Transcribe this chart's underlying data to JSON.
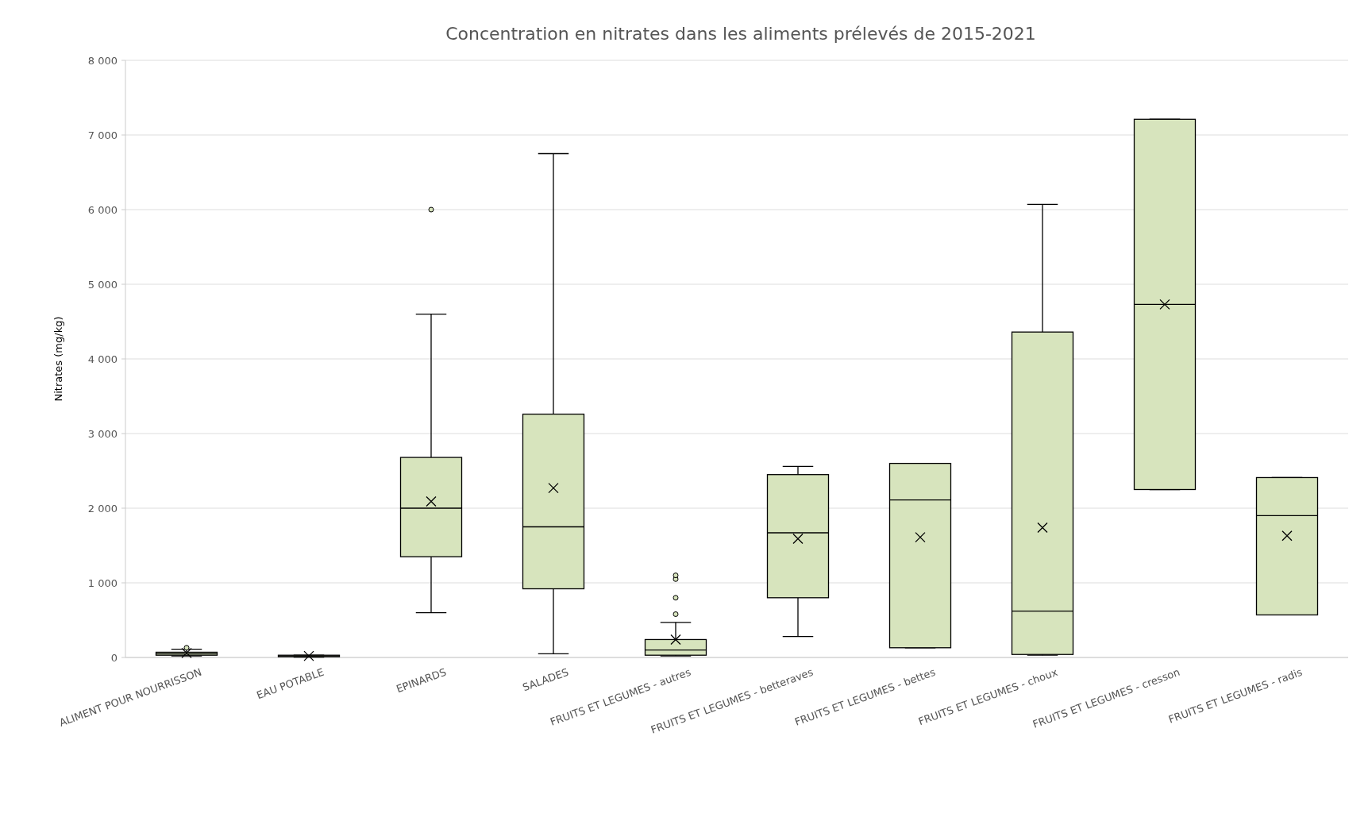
{
  "chart_data": {
    "type": "box",
    "title": "Concentration en nitrates dans les aliments prélevés de 2015-2021",
    "ylabel": "Nitrates (mg/kg)",
    "categories": [
      "ALIMENT POUR NOURRISSON",
      "EAU POTABLE",
      "EPINARDS",
      "SALADES",
      "FRUITS ET LEGUMES - autres",
      "FRUITS ET LEGUMES - betteraves",
      "FRUITS ET LEGUMES - bettes",
      "FRUITS ET LEGUMES - choux",
      "FRUITS ET LEGUMES - cresson",
      "FRUITS ET LEGUMES - radis"
    ],
    "color": "#d7e4bd",
    "boxes": [
      {
        "low": 20,
        "q1": 30,
        "median": 50,
        "q3": 70,
        "high": 110,
        "mean": 60,
        "outliers": [
          130
        ]
      },
      {
        "low": 5,
        "q1": 10,
        "median": 20,
        "q3": 30,
        "high": 30,
        "mean": 20
      },
      {
        "low": 600,
        "q1": 1350,
        "median": 2000,
        "q3": 2680,
        "high": 4600,
        "mean": 2090,
        "outliers": [
          6000
        ]
      },
      {
        "low": 50,
        "q1": 920,
        "median": 1750,
        "q3": 3260,
        "high": 6750,
        "mean": 2270
      },
      {
        "low": 20,
        "q1": 30,
        "median": 100,
        "q3": 240,
        "high": 470,
        "mean": 240,
        "outliers": [
          580,
          800,
          1050,
          1100
        ]
      },
      {
        "low": 280,
        "q1": 800,
        "median": 1670,
        "q3": 2450,
        "high": 2560,
        "mean": 1590
      },
      {
        "low": 130,
        "q1": 130,
        "median": 2110,
        "q3": 2600,
        "high": 2600,
        "mean": 1610
      },
      {
        "low": 30,
        "q1": 40,
        "median": 620,
        "q3": 4360,
        "high": 6070,
        "mean": 1740
      },
      {
        "low": 2250,
        "q1": 2250,
        "median": 4730,
        "q3": 7210,
        "high": 7210,
        "mean": 4730
      },
      {
        "low": 570,
        "q1": 570,
        "median": 1900,
        "q3": 2410,
        "high": 2410,
        "mean": 1630
      }
    ],
    "ylim": [
      0,
      8000
    ],
    "yticks": [
      {
        "value": 0,
        "label": "0"
      },
      {
        "value": 1000,
        "label": "1 000"
      },
      {
        "value": 2000,
        "label": "2 000"
      },
      {
        "value": 3000,
        "label": "3 000"
      },
      {
        "value": 4000,
        "label": "4 000"
      },
      {
        "value": 5000,
        "label": "5 000"
      },
      {
        "value": 6000,
        "label": "6 000"
      },
      {
        "value": 7000,
        "label": "7 000"
      },
      {
        "value": 8000,
        "label": "8 000"
      }
    ],
    "grid": "y",
    "marker": "cross"
  }
}
